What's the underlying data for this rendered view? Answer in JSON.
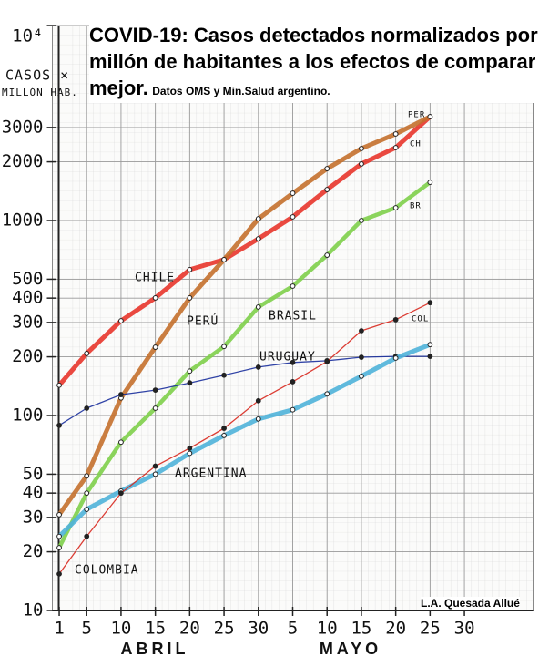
{
  "chart_data": {
    "type": "line",
    "title": "COVID-19: Casos detectados normalizados por millón de habitantes a los efectos de comparar mejor.",
    "subtitle": "Datos OMS y Min.Salud argentino.",
    "author": "L.A. Quesada Allué",
    "ylabel": [
      "CASOS ×",
      "MILLÓN HAB."
    ],
    "months": [
      "ABRIL",
      "MAYO"
    ],
    "log_y": true,
    "grid": true,
    "x": [
      1,
      5,
      10,
      15,
      20,
      25,
      30,
      35,
      40,
      45,
      50,
      55
    ],
    "xlim": [
      0,
      70
    ],
    "xticks": [
      1,
      5,
      10,
      15,
      20,
      25,
      30,
      {
        "value": 35,
        "label": "5"
      },
      {
        "value": 40,
        "label": "10"
      },
      {
        "value": 45,
        "label": "15"
      },
      {
        "value": 50,
        "label": "20"
      },
      {
        "value": 55,
        "label": "25"
      },
      {
        "value": 60,
        "label": "30"
      }
    ],
    "ylim": [
      10,
      10000
    ],
    "yticks": [
      10,
      20,
      30,
      40,
      50,
      100,
      200,
      300,
      400,
      500,
      1000,
      2000,
      3000,
      {
        "value": 10000,
        "label": "10⁴"
      }
    ],
    "series": [
      {
        "name": "CHILE",
        "end_label": "CH",
        "color": "#e8352b",
        "linewidth": 5,
        "values": [
          143,
          208,
          306,
          401,
          560,
          630,
          806,
          1044,
          1441,
          1950,
          2365,
          3410
        ]
      },
      {
        "name": "PERÚ",
        "end_label": "PER",
        "color": "#c4702c",
        "linewidth": 5,
        "values": [
          31,
          49,
          123,
          224,
          401,
          630,
          1021,
          1380,
          1845,
          2340,
          2780,
          3410
        ]
      },
      {
        "name": "BRASIL",
        "end_label": "BR",
        "color": "#7ecf4a",
        "linewidth": 4.5,
        "values": [
          21,
          40,
          73,
          109,
          169,
          226,
          360,
          461,
          664,
          1000,
          1162,
          1570
        ]
      },
      {
        "name": "URUGUAY",
        "color": "#1a2f9c",
        "linewidth": 1.3,
        "values": [
          89,
          109,
          128,
          135,
          147,
          161,
          177,
          187,
          191,
          199,
          201,
          201
        ]
      },
      {
        "name": "ARGENTINA",
        "color": "#4fb3d9",
        "linewidth": 5,
        "values": [
          24,
          33,
          41,
          50,
          64,
          79,
          96,
          107,
          129,
          159,
          197,
          231
        ]
      },
      {
        "name": "COLOMBIA",
        "end_label": "COL",
        "color": "#d8281e",
        "linewidth": 1.3,
        "values": [
          15.4,
          24,
          40,
          55,
          68,
          86,
          119,
          149,
          189,
          272,
          310,
          379
        ]
      }
    ]
  }
}
